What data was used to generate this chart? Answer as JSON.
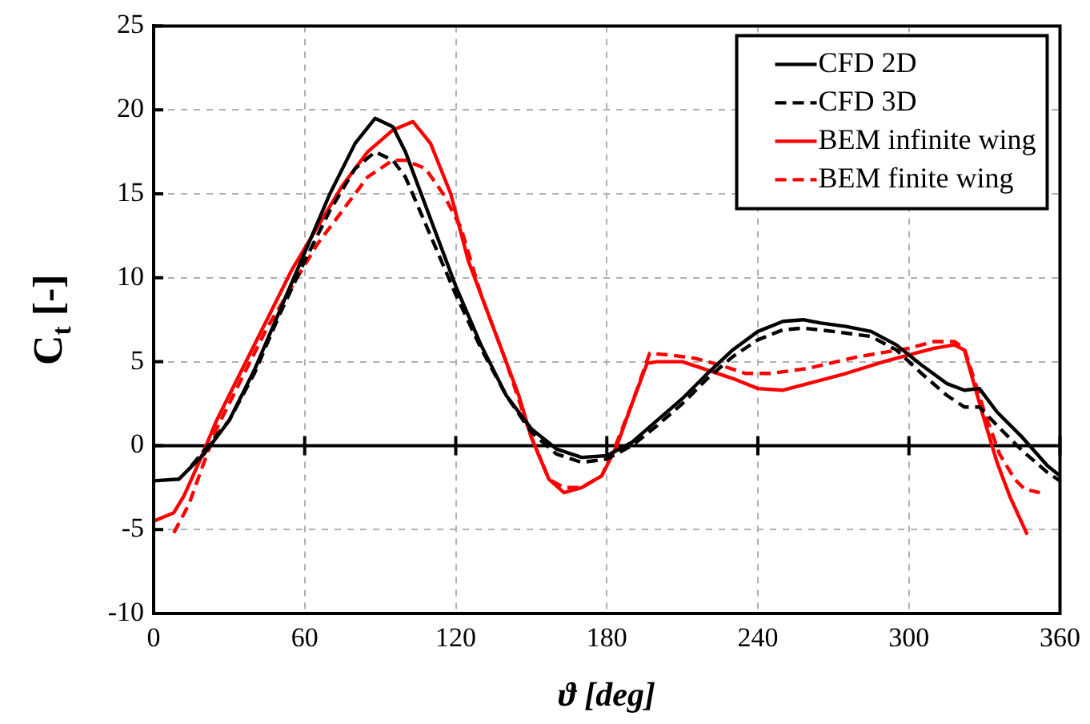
{
  "chart_data": {
    "type": "line",
    "xlabel": "ϑ [deg]",
    "ylabel": "C$_{t}$ [-]",
    "xlim": [
      0,
      360
    ],
    "xticks": [
      0,
      60,
      120,
      180,
      240,
      300,
      360
    ],
    "ylim": [
      -10,
      25
    ],
    "yticks": [
      -10,
      -5,
      0,
      5,
      10,
      15,
      20,
      25
    ],
    "grid": true,
    "legend": "top right",
    "marker": "none",
    "ref_lines": [
      {
        "axis": "y",
        "value": 0,
        "color": "#000000",
        "line_style": "solid"
      }
    ],
    "series": [
      {
        "name": "CFD 2D",
        "color": "#000000",
        "line_style": "solid",
        "x": [
          0,
          10,
          20,
          30,
          40,
          50,
          60,
          70,
          80,
          88,
          95,
          100,
          110,
          120,
          130,
          140,
          150,
          160,
          170,
          180,
          190,
          200,
          210,
          220,
          230,
          240,
          250,
          258,
          265,
          275,
          285,
          295,
          305,
          315,
          322,
          328,
          335,
          345,
          355,
          360
        ],
        "values": [
          -2.1,
          -2,
          -0.5,
          1.5,
          4.5,
          8,
          11.5,
          15,
          18,
          19.5,
          19,
          17.5,
          13.5,
          9.5,
          6,
          3,
          1,
          -0.2,
          -0.7,
          -0.6,
          0.2,
          1.5,
          2.8,
          4.3,
          5.7,
          6.8,
          7.4,
          7.5,
          7.3,
          7.1,
          6.8,
          6,
          4.8,
          3.7,
          3.3,
          3.4,
          2,
          0.5,
          -1.2,
          -1.8
        ]
      },
      {
        "name": "CFD 3D",
        "color": "#000000",
        "line_style": "dashed",
        "x": [
          15,
          20,
          30,
          40,
          50,
          60,
          70,
          80,
          88,
          95,
          100,
          110,
          120,
          130,
          140,
          150,
          160,
          170,
          180,
          190,
          200,
          210,
          220,
          230,
          240,
          250,
          258,
          270,
          285,
          295,
          305,
          315,
          322,
          328,
          335,
          345,
          355,
          360
        ],
        "values": [
          -1.2,
          -0.3,
          1.5,
          4.3,
          7.8,
          11,
          14,
          16.5,
          17.5,
          17,
          16,
          12.5,
          9,
          5.8,
          3,
          0.8,
          -0.5,
          -1,
          -0.8,
          0,
          1.2,
          2.5,
          4,
          5.3,
          6.3,
          6.9,
          7,
          6.8,
          6.5,
          5.7,
          4.3,
          3,
          2.3,
          2.3,
          1.2,
          -0.3,
          -1.6,
          -2.1
        ]
      },
      {
        "name": "BEM infinite wing",
        "color": "#ff0000",
        "line_style": "solid",
        "x": [
          0,
          8,
          12,
          18,
          25,
          35,
          45,
          55,
          65,
          75,
          85,
          95,
          103,
          110,
          118,
          125,
          135,
          145,
          150,
          157,
          163,
          170,
          178,
          184,
          190,
          196,
          200,
          210,
          220,
          230,
          240,
          250,
          260,
          275,
          290,
          300,
          310,
          318,
          322,
          330,
          335,
          340,
          347
        ],
        "values": [
          -4.5,
          -4,
          -3,
          -1,
          1.5,
          4.5,
          7.5,
          10.5,
          13,
          15.5,
          17.5,
          18.8,
          19.3,
          18,
          15,
          11,
          7,
          3,
          0.5,
          -2,
          -2.8,
          -2.5,
          -1.8,
          0,
          2.5,
          4.9,
          5,
          5,
          4.5,
          4,
          3.4,
          3.3,
          3.7,
          4.3,
          5,
          5.4,
          5.8,
          6,
          5.7,
          1.5,
          -1,
          -3,
          -5.3
        ]
      },
      {
        "name": "BEM finite wing",
        "color": "#ff0000",
        "line_style": "dashed",
        "x": [
          8,
          14,
          20,
          25,
          35,
          45,
          55,
          65,
          75,
          85,
          95,
          100,
          108,
          115,
          122,
          130,
          140,
          150,
          157,
          163,
          170,
          178,
          184,
          190,
          197,
          205,
          215,
          225,
          235,
          245,
          260,
          280,
          300,
          310,
          318,
          322,
          330,
          336,
          342,
          346,
          352
        ],
        "values": [
          -5.2,
          -3.5,
          -1,
          1,
          4,
          7,
          9.5,
          12,
          14,
          16,
          17,
          17,
          16.5,
          15,
          13,
          9,
          5,
          0.5,
          -2,
          -2.5,
          -2.5,
          -1.8,
          0.2,
          2.5,
          5.5,
          5.4,
          5.2,
          4.8,
          4.3,
          4.3,
          4.6,
          5.3,
          5.8,
          6.2,
          6.2,
          5.8,
          2,
          -0.5,
          -2,
          -2.6,
          -2.8
        ]
      }
    ]
  }
}
